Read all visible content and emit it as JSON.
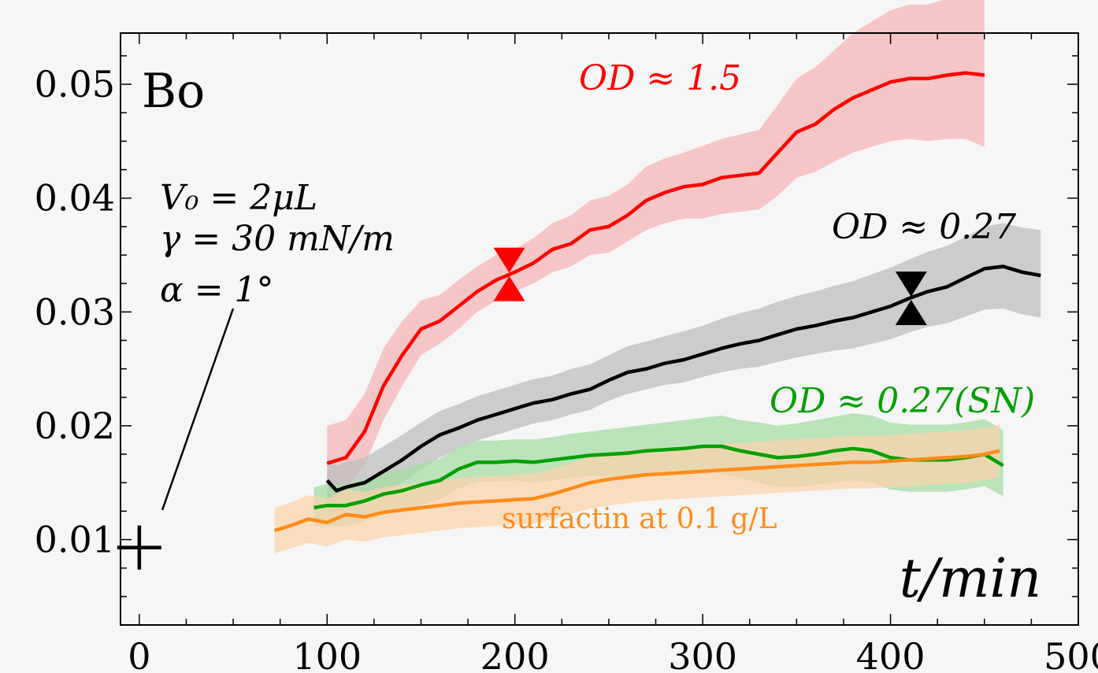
{
  "chart_data": {
    "type": "line",
    "xlabel": "t/min",
    "ylabel": "Bo",
    "xlim": [
      -10,
      500
    ],
    "ylim": [
      0.0025,
      0.0545
    ],
    "xticks": [
      0,
      100,
      200,
      300,
      400,
      500
    ],
    "xtick_labels": [
      "0",
      "100",
      "200",
      "300",
      "400",
      "500"
    ],
    "yticks": [
      0.01,
      0.02,
      0.03,
      0.04,
      0.05
    ],
    "ytick_labels": [
      "0.01",
      "0.02",
      "0.03",
      "0.04",
      "0.05"
    ],
    "grid": false,
    "colors": {
      "red": "#ff0000",
      "black": "#000000",
      "green": "#00a000",
      "orange": "#ff8c1a"
    },
    "series": [
      {
        "name": "OD ≈ 1.5",
        "color": "#ff0000",
        "band_color": "#f5b5b5",
        "x": [
          100,
          110,
          120,
          130,
          140,
          150,
          160,
          170,
          180,
          190,
          200,
          210,
          220,
          230,
          240,
          250,
          260,
          270,
          280,
          290,
          300,
          310,
          320,
          330,
          340,
          350,
          360,
          370,
          380,
          390,
          400,
          410,
          420,
          430,
          440,
          450
        ],
        "values": [
          0.0167,
          0.0172,
          0.0195,
          0.0235,
          0.0262,
          0.0285,
          0.0292,
          0.0305,
          0.0318,
          0.0328,
          0.0335,
          0.0343,
          0.0355,
          0.036,
          0.0372,
          0.0375,
          0.0385,
          0.0398,
          0.0405,
          0.041,
          0.0412,
          0.0418,
          0.042,
          0.0422,
          0.044,
          0.0458,
          0.0465,
          0.0478,
          0.0488,
          0.0495,
          0.0502,
          0.0505,
          0.0505,
          0.0508,
          0.051,
          0.0508
        ],
        "lower": [
          0.0135,
          0.0145,
          0.0165,
          0.0205,
          0.0235,
          0.0262,
          0.0272,
          0.0285,
          0.03,
          0.031,
          0.0318,
          0.0325,
          0.0335,
          0.034,
          0.035,
          0.0352,
          0.0362,
          0.0372,
          0.0378,
          0.0382,
          0.0382,
          0.0386,
          0.0388,
          0.039,
          0.0402,
          0.0418,
          0.0423,
          0.0432,
          0.044,
          0.0445,
          0.045,
          0.0452,
          0.045,
          0.0452,
          0.0452,
          0.0445
        ],
        "upper": [
          0.02,
          0.0205,
          0.0228,
          0.0268,
          0.0292,
          0.031,
          0.0315,
          0.0328,
          0.034,
          0.035,
          0.0355,
          0.0365,
          0.0378,
          0.0385,
          0.0398,
          0.0402,
          0.0412,
          0.0428,
          0.0435,
          0.044,
          0.0446,
          0.0452,
          0.0456,
          0.046,
          0.0482,
          0.0505,
          0.0515,
          0.053,
          0.0545,
          0.0555,
          0.0565,
          0.057,
          0.057,
          0.0575,
          0.058,
          0.058
        ]
      },
      {
        "name": "OD ≈ 0.27",
        "color": "#000000",
        "band_color": "#bdbdbd",
        "x": [
          100,
          105,
          110,
          120,
          130,
          140,
          150,
          160,
          170,
          180,
          190,
          200,
          210,
          220,
          230,
          240,
          250,
          260,
          270,
          280,
          290,
          300,
          310,
          320,
          330,
          340,
          350,
          360,
          370,
          380,
          390,
          400,
          410,
          420,
          430,
          440,
          450,
          460,
          470,
          480
        ],
        "values": [
          0.0152,
          0.0143,
          0.0146,
          0.015,
          0.016,
          0.017,
          0.0182,
          0.0192,
          0.0198,
          0.0205,
          0.021,
          0.0215,
          0.022,
          0.0223,
          0.0228,
          0.0232,
          0.024,
          0.0247,
          0.025,
          0.0255,
          0.0258,
          0.0263,
          0.0268,
          0.0272,
          0.0275,
          0.028,
          0.0285,
          0.0288,
          0.0292,
          0.0295,
          0.03,
          0.0305,
          0.0312,
          0.0318,
          0.0322,
          0.033,
          0.0338,
          0.034,
          0.0335,
          0.0332
        ],
        "lower": [
          0.013,
          0.0125,
          0.0128,
          0.0132,
          0.014,
          0.015,
          0.0162,
          0.0172,
          0.018,
          0.0187,
          0.0192,
          0.0197,
          0.0202,
          0.0205,
          0.021,
          0.0214,
          0.0222,
          0.0228,
          0.0232,
          0.0236,
          0.0238,
          0.0243,
          0.0247,
          0.025,
          0.0252,
          0.0256,
          0.026,
          0.0263,
          0.0266,
          0.0268,
          0.0272,
          0.0276,
          0.0282,
          0.0287,
          0.029,
          0.0296,
          0.0302,
          0.0303,
          0.0298,
          0.0295
        ],
        "upper": [
          0.0172,
          0.0165,
          0.0168,
          0.0172,
          0.0182,
          0.0192,
          0.0203,
          0.0213,
          0.0219,
          0.0226,
          0.0231,
          0.0236,
          0.0241,
          0.0244,
          0.025,
          0.0254,
          0.0262,
          0.027,
          0.0274,
          0.0279,
          0.0283,
          0.0288,
          0.0294,
          0.0299,
          0.0303,
          0.0309,
          0.0314,
          0.0318,
          0.0323,
          0.0327,
          0.0333,
          0.0339,
          0.0346,
          0.0353,
          0.0358,
          0.0366,
          0.0375,
          0.0378,
          0.0374,
          0.0372
        ]
      },
      {
        "name": "OD ≈ 0.27(SN)",
        "color": "#00a000",
        "band_color": "#a6dca6",
        "x": [
          93,
          100,
          110,
          120,
          130,
          140,
          150,
          160,
          170,
          180,
          190,
          200,
          210,
          220,
          230,
          240,
          250,
          260,
          270,
          280,
          290,
          300,
          310,
          320,
          330,
          340,
          350,
          360,
          370,
          380,
          390,
          400,
          410,
          420,
          430,
          440,
          450,
          460
        ],
        "values": [
          0.0128,
          0.013,
          0.013,
          0.0134,
          0.014,
          0.0143,
          0.0148,
          0.0152,
          0.0162,
          0.0168,
          0.0168,
          0.0169,
          0.0168,
          0.017,
          0.0172,
          0.0174,
          0.0175,
          0.0176,
          0.0178,
          0.0179,
          0.018,
          0.0182,
          0.0182,
          0.0178,
          0.0175,
          0.0172,
          0.0173,
          0.0175,
          0.0178,
          0.018,
          0.0178,
          0.0172,
          0.017,
          0.017,
          0.017,
          0.0172,
          0.0175,
          0.0165
        ],
        "lower": [
          0.0112,
          0.0112,
          0.0112,
          0.0116,
          0.0122,
          0.0125,
          0.013,
          0.0135,
          0.0145,
          0.0151,
          0.0151,
          0.0152,
          0.015,
          0.0152,
          0.0154,
          0.0156,
          0.0156,
          0.0156,
          0.0158,
          0.0158,
          0.0158,
          0.016,
          0.0158,
          0.0154,
          0.015,
          0.0146,
          0.0146,
          0.0148,
          0.015,
          0.0152,
          0.015,
          0.0144,
          0.0142,
          0.0142,
          0.0142,
          0.0144,
          0.0147,
          0.0138
        ],
        "upper": [
          0.0146,
          0.0149,
          0.0149,
          0.0153,
          0.0159,
          0.0162,
          0.0167,
          0.0171,
          0.0181,
          0.0187,
          0.0187,
          0.0188,
          0.0188,
          0.019,
          0.0193,
          0.0195,
          0.0197,
          0.0199,
          0.0201,
          0.0203,
          0.0205,
          0.0207,
          0.0209,
          0.0205,
          0.0203,
          0.02,
          0.0202,
          0.0205,
          0.0208,
          0.0211,
          0.0209,
          0.0203,
          0.0201,
          0.0201,
          0.0201,
          0.0203,
          0.0206,
          0.0196
        ]
      },
      {
        "name": "surfactin at 0.1 g/L",
        "color": "#ff8c1a",
        "band_color": "#fbd3ab",
        "x": [
          72,
          80,
          90,
          100,
          110,
          120,
          130,
          140,
          150,
          160,
          170,
          180,
          190,
          200,
          210,
          220,
          230,
          240,
          250,
          260,
          270,
          280,
          290,
          300,
          310,
          320,
          330,
          340,
          350,
          360,
          370,
          380,
          390,
          400,
          410,
          420,
          430,
          440,
          450,
          458
        ],
        "values": [
          0.0108,
          0.0112,
          0.0118,
          0.0115,
          0.0122,
          0.012,
          0.0124,
          0.0126,
          0.0128,
          0.013,
          0.0132,
          0.0133,
          0.0134,
          0.0135,
          0.0136,
          0.014,
          0.0145,
          0.015,
          0.0153,
          0.0155,
          0.0157,
          0.0158,
          0.0159,
          0.016,
          0.0161,
          0.0162,
          0.0163,
          0.0164,
          0.0165,
          0.0166,
          0.0167,
          0.0168,
          0.0168,
          0.0169,
          0.017,
          0.0171,
          0.0172,
          0.0173,
          0.0175,
          0.0178
        ],
        "lower": [
          0.0088,
          0.0092,
          0.0097,
          0.0094,
          0.01,
          0.0098,
          0.0102,
          0.0104,
          0.0106,
          0.0108,
          0.011,
          0.0111,
          0.0112,
          0.0113,
          0.0114,
          0.0118,
          0.0123,
          0.0127,
          0.013,
          0.0132,
          0.0134,
          0.0135,
          0.0136,
          0.0137,
          0.0138,
          0.0139,
          0.014,
          0.0141,
          0.0142,
          0.0143,
          0.0144,
          0.0145,
          0.0145,
          0.0146,
          0.0147,
          0.0148,
          0.0149,
          0.015,
          0.0152,
          0.0155
        ],
        "upper": [
          0.0128,
          0.0132,
          0.0139,
          0.0136,
          0.0144,
          0.0142,
          0.0146,
          0.0148,
          0.015,
          0.0152,
          0.0154,
          0.0155,
          0.0156,
          0.0157,
          0.0158,
          0.0162,
          0.0167,
          0.0173,
          0.0176,
          0.0178,
          0.018,
          0.0181,
          0.0182,
          0.0183,
          0.0184,
          0.0185,
          0.0186,
          0.0187,
          0.0188,
          0.0189,
          0.019,
          0.0191,
          0.0191,
          0.0192,
          0.0193,
          0.0194,
          0.0195,
          0.0196,
          0.0198,
          0.0201
        ]
      }
    ],
    "markers": [
      {
        "series": "OD ≈ 1.5",
        "x": 197,
        "y": 0.0333,
        "color": "#ff0000",
        "shape": "hourglass"
      },
      {
        "series": "OD ≈ 0.27",
        "x": 411,
        "y": 0.0312,
        "color": "#000000",
        "shape": "hourglass"
      }
    ],
    "reference_point": {
      "x": 0,
      "y": 0.0093,
      "shape": "plus"
    },
    "annotations": {
      "params": [
        "V₀ = 2μL",
        "γ = 30 mN/m",
        "α = 1°"
      ]
    }
  }
}
